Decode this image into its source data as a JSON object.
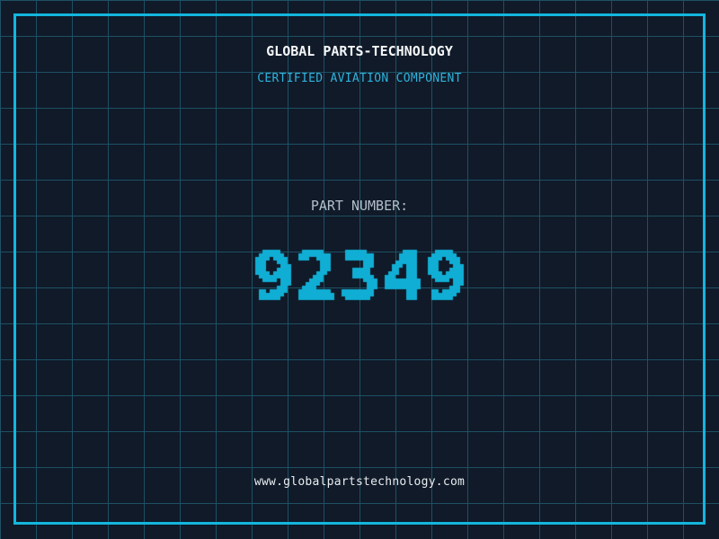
{
  "theme": {
    "background": "#101a29",
    "grid_line": "#1e5064",
    "frame": "#13b6dd",
    "title_color": "#f4f6f7",
    "subtitle_color": "#2fb3dc",
    "label_color": "#b3bfc9",
    "number_color": "#10aed4",
    "url_color": "#e8edef"
  },
  "header": {
    "title": "GLOBAL PARTS-TECHNOLOGY",
    "subtitle": "CERTIFIED AVIATION COMPONENT"
  },
  "part_number": {
    "label": "PART NUMBER:",
    "value": "92349"
  },
  "footer": {
    "url": "www.globalpartstechnology.com"
  }
}
